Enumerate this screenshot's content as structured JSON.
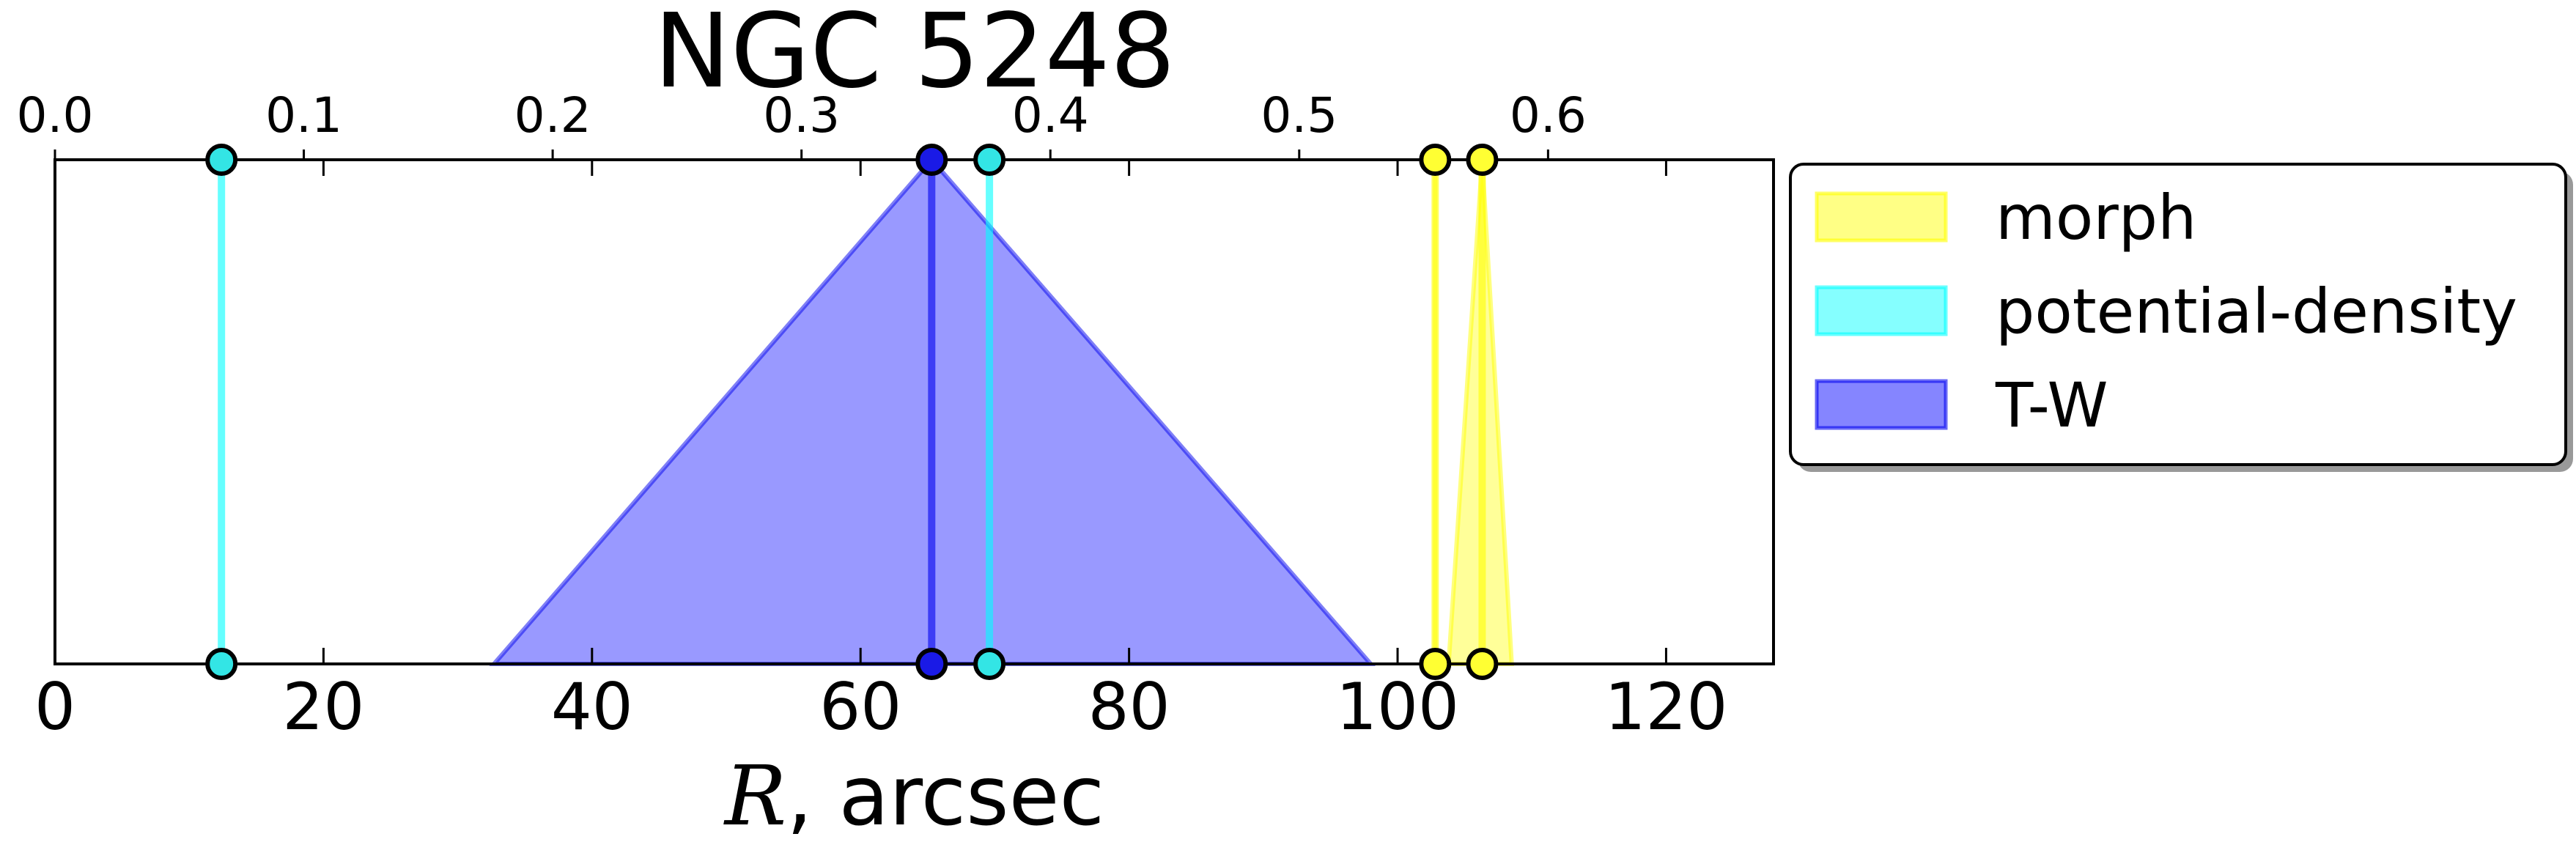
{
  "chart_data": {
    "type": "area",
    "title": "NGC 5248",
    "xlabel_var": "R",
    "xlabel_rest": ", arcsec",
    "xlim": [
      0,
      128
    ],
    "top_xlim": [
      0,
      0.6906
    ],
    "ylim": [
      0,
      1
    ],
    "x_ticks": [
      {
        "value": 0,
        "label": "0"
      },
      {
        "value": 20,
        "label": "20"
      },
      {
        "value": 40,
        "label": "40"
      },
      {
        "value": 60,
        "label": "60"
      },
      {
        "value": 80,
        "label": "80"
      },
      {
        "value": 100,
        "label": "100"
      },
      {
        "value": 120,
        "label": "120"
      }
    ],
    "top_ticks": [
      {
        "value": 0.0,
        "label": "0.0"
      },
      {
        "value": 0.1,
        "label": "0.1"
      },
      {
        "value": 0.2,
        "label": "0.2"
      },
      {
        "value": 0.3,
        "label": "0.3"
      },
      {
        "value": 0.4,
        "label": "0.4"
      },
      {
        "value": 0.5,
        "label": "0.5"
      },
      {
        "value": 0.6,
        "label": "0.6"
      }
    ],
    "grid": false,
    "legend_position": "outside-right-top",
    "series": [
      {
        "name": "morph",
        "color": "#ffff33",
        "edge_color": "#ffff00",
        "marker_face": "#ffff33",
        "lines": [
          102.8,
          106.3
        ],
        "regions": [
          {
            "x_low": 102.8,
            "x_high": 102.8,
            "peak": 102.8
          },
          {
            "x_low": 103.8,
            "x_high": 108.5,
            "peak": 106.3
          }
        ]
      },
      {
        "name": "potential-density",
        "color": "#33ffff",
        "edge_color": "#00ffff",
        "marker_face": "#33e5e5",
        "lines": [
          12.4,
          69.6
        ],
        "regions": []
      },
      {
        "name": "T-W",
        "color": "#3333ff",
        "edge_color": "#0000ee",
        "marker_face": "#1a1ae6",
        "lines": [
          65.3
        ],
        "regions": [
          {
            "x_low": 32.7,
            "x_high": 98.0,
            "peak": 65.3
          }
        ]
      }
    ]
  }
}
